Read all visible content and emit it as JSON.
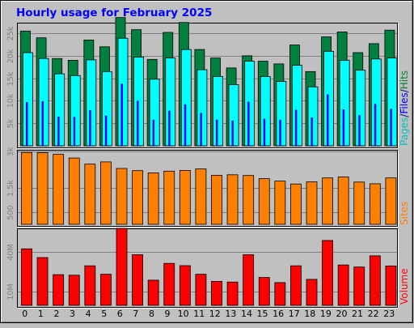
{
  "title": "Hourly usage for February 2025",
  "chart_data": [
    {
      "type": "bar",
      "panel": "top",
      "categories": [
        "0",
        "1",
        "2",
        "3",
        "4",
        "5",
        "6",
        "7",
        "8",
        "9",
        "10",
        "11",
        "12",
        "13",
        "14",
        "15",
        "16",
        "17",
        "18",
        "19",
        "20",
        "21",
        "22",
        "23"
      ],
      "ylabel_parts": [
        "Pages",
        "/",
        "Files",
        "/",
        "Hits"
      ],
      "ylim": [
        0,
        27000
      ],
      "yticks": [
        5000,
        10000,
        15000,
        20000,
        25000
      ],
      "ytick_labels": [
        "5k",
        "10k",
        "15k",
        "20k",
        "25k"
      ],
      "grid": true,
      "series": [
        {
          "name": "Hits",
          "color": "#008040",
          "values": [
            25500,
            24000,
            19400,
            19000,
            23500,
            22000,
            28500,
            25800,
            19200,
            25200,
            27400,
            21400,
            19500,
            17300,
            20000,
            18800,
            18200,
            22400,
            16500,
            24200,
            25300,
            20700,
            22700,
            25700
          ]
        },
        {
          "name": "Files",
          "color": "#00ffff",
          "values": [
            20700,
            19400,
            16000,
            15600,
            19100,
            16500,
            23900,
            19700,
            14800,
            19500,
            21400,
            16900,
            15400,
            13600,
            18800,
            15400,
            14300,
            17900,
            13100,
            21000,
            19000,
            16800,
            19300,
            19500
          ]
        },
        {
          "name": "Pages",
          "color": "#0000ff",
          "values": [
            9700,
            9900,
            6500,
            6400,
            7900,
            6700,
            13800,
            10000,
            5800,
            7800,
            9200,
            7300,
            5800,
            5600,
            9800,
            6000,
            5800,
            8000,
            6300,
            11400,
            8100,
            6800,
            9300,
            8200
          ]
        }
      ]
    },
    {
      "type": "bar",
      "panel": "middle",
      "categories": [
        "0",
        "1",
        "2",
        "3",
        "4",
        "5",
        "6",
        "7",
        "8",
        "9",
        "10",
        "11",
        "12",
        "13",
        "14",
        "15",
        "16",
        "17",
        "18",
        "19",
        "20",
        "21",
        "22",
        "23"
      ],
      "ylabel": "Sites",
      "ylim": [
        0,
        3000
      ],
      "yticks": [
        500,
        1500,
        3000
      ],
      "ytick_labels": [
        "500",
        "1.5k",
        "3k"
      ],
      "grid": true,
      "series": [
        {
          "name": "Sites",
          "color": "#ff8000",
          "values": [
            2960,
            2950,
            2880,
            2730,
            2480,
            2570,
            2300,
            2210,
            2120,
            2190,
            2220,
            2280,
            2020,
            2040,
            2010,
            1880,
            1780,
            1660,
            1750,
            1910,
            1950,
            1740,
            1670,
            1910
          ]
        }
      ]
    },
    {
      "type": "bar",
      "panel": "bottom",
      "categories": [
        "0",
        "1",
        "2",
        "3",
        "4",
        "5",
        "6",
        "7",
        "8",
        "9",
        "10",
        "11",
        "12",
        "13",
        "14",
        "15",
        "16",
        "17",
        "18",
        "19",
        "20",
        "21",
        "22",
        "23"
      ],
      "xtick_labels": [
        "0",
        "1",
        "2",
        "3",
        "4",
        "5",
        "6",
        "7",
        "8",
        "9",
        "10",
        "11",
        "12",
        "13",
        "14",
        "15",
        "16",
        "17",
        "18",
        "19",
        "20",
        "21",
        "22",
        "23"
      ],
      "ylabel": "Volume",
      "ylim": [
        0,
        56000000
      ],
      "yticks": [
        10000000,
        40000000
      ],
      "ytick_labels": [
        "10M",
        "40M"
      ],
      "grid": true,
      "series": [
        {
          "name": "Volume",
          "color": "#ff0000",
          "values": [
            42000000,
            35500000,
            22800000,
            22400000,
            29400000,
            23100000,
            57200000,
            37600000,
            18700000,
            31200000,
            29500000,
            23100000,
            17800000,
            17300000,
            37600000,
            20700000,
            16900000,
            29400000,
            19300000,
            48200000,
            30000000,
            28500000,
            36800000,
            29300000
          ]
        }
      ]
    }
  ]
}
